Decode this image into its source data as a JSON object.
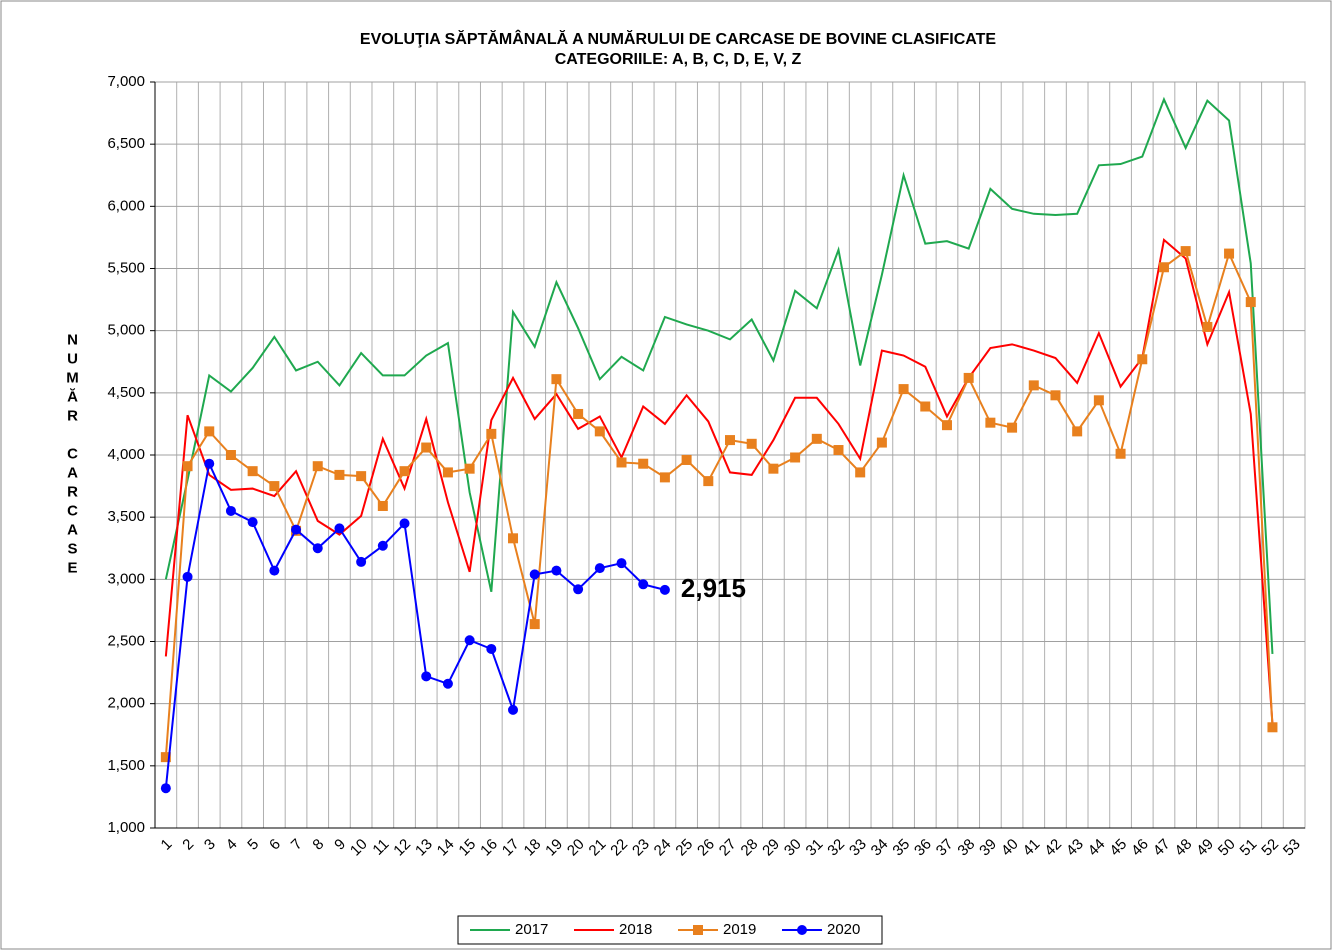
{
  "chart_data": {
    "type": "line",
    "title": "EVOLUŢIA SĂPTĂMÂNALĂ A NUMĂRULUI DE CARCASE DE BOVINE  CLASIFICATE",
    "subtitle": "CATEGORIILE: A, B, C, D, E, V, Z",
    "y_label": "NUMĂR CARCASE",
    "categories": [
      "1",
      "2",
      "3",
      "4",
      "5",
      "6",
      "7",
      "8",
      "9",
      "10",
      "11",
      "12",
      "13",
      "14",
      "15",
      "16",
      "17",
      "18",
      "19",
      "20",
      "21",
      "22",
      "23",
      "24",
      "25",
      "26",
      "27",
      "28",
      "29",
      "30",
      "31",
      "32",
      "33",
      "34",
      "35",
      "36",
      "37",
      "38",
      "39",
      "40",
      "41",
      "42",
      "43",
      "44",
      "45",
      "46",
      "47",
      "48",
      "49",
      "50",
      "51",
      "52",
      "53"
    ],
    "series": [
      {
        "name": "2017",
        "color": "#1fa84f",
        "marker": "none",
        "values": [
          3000,
          3800,
          4640,
          4510,
          4700,
          4950,
          4680,
          4750,
          4560,
          4820,
          4640,
          4640,
          4800,
          4900,
          3700,
          2900,
          5150,
          4870,
          5390,
          5020,
          4610,
          4790,
          4680,
          5110,
          5050,
          5000,
          4930,
          5090,
          4760,
          5320,
          5180,
          5650,
          4720,
          5450,
          6250,
          5700,
          5720,
          5660,
          6140,
          5980,
          5940,
          5930,
          5940,
          6330,
          6340,
          6400,
          6860,
          6470,
          6850,
          6690,
          5540,
          2400,
          null
        ]
      },
      {
        "name": "2018",
        "color": "#ff0000",
        "marker": "none",
        "values": [
          2380,
          4320,
          3840,
          3720,
          3730,
          3670,
          3870,
          3470,
          3360,
          3510,
          4130,
          3730,
          4290,
          3620,
          3060,
          4280,
          4620,
          4290,
          4490,
          4210,
          4310,
          3980,
          4390,
          4250,
          4480,
          4270,
          3860,
          3840,
          4120,
          4460,
          4460,
          4250,
          3970,
          4840,
          4800,
          4710,
          4310,
          4620,
          4860,
          4890,
          4840,
          4780,
          4580,
          4980,
          4550,
          4780,
          5730,
          5580,
          4890,
          5310,
          4330,
          1840,
          null
        ]
      },
      {
        "name": "2019",
        "color": "#e8801e",
        "marker": "square",
        "values": [
          1570,
          3910,
          4190,
          4000,
          3870,
          3750,
          3390,
          3910,
          3840,
          3830,
          3590,
          3870,
          4060,
          3860,
          3890,
          4170,
          3330,
          2640,
          4610,
          4330,
          4190,
          3940,
          3930,
          3820,
          3960,
          3790,
          4120,
          4090,
          3890,
          3980,
          4130,
          4040,
          3860,
          4100,
          4530,
          4390,
          4240,
          4620,
          4260,
          4220,
          4560,
          4480,
          4190,
          4440,
          4010,
          4770,
          5510,
          5640,
          5030,
          5620,
          5230,
          1810,
          null
        ]
      },
      {
        "name": "2020",
        "color": "#0000ff",
        "marker": "circle",
        "values": [
          1320,
          3020,
          3930,
          3550,
          3460,
          3070,
          3400,
          3250,
          3410,
          3140,
          3270,
          3450,
          2220,
          2160,
          2510,
          2440,
          1950,
          3040,
          3070,
          2920,
          3090,
          3130,
          2960,
          2915,
          null,
          null,
          null,
          null,
          null,
          null,
          null,
          null,
          null,
          null,
          null,
          null,
          null,
          null,
          null,
          null,
          null,
          null,
          null,
          null,
          null,
          null,
          null,
          null,
          null,
          null,
          null,
          null,
          null
        ],
        "value_labels": [
          null,
          null,
          null,
          null,
          null,
          null,
          null,
          null,
          null,
          null,
          null,
          null,
          null,
          null,
          null,
          null,
          null,
          null,
          null,
          null,
          null,
          null,
          null,
          "2,915",
          null,
          null,
          null,
          null,
          null,
          null,
          null,
          null,
          null,
          null,
          null,
          null,
          null,
          null,
          null,
          null,
          null,
          null,
          null,
          null,
          null,
          null,
          null,
          null,
          null,
          null,
          null,
          null,
          null
        ]
      }
    ],
    "ylim": [
      1000,
      7000
    ],
    "yticks": [
      {
        "value": 1000,
        "label": "1,000"
      },
      {
        "value": 1500,
        "label": "1,500"
      },
      {
        "value": 2000,
        "label": "2,000"
      },
      {
        "value": 2500,
        "label": "2,500"
      },
      {
        "value": 3000,
        "label": "3,000"
      },
      {
        "value": 3500,
        "label": "3,500"
      },
      {
        "value": 4000,
        "label": "4,000"
      },
      {
        "value": 4500,
        "label": "4,500"
      },
      {
        "value": 5000,
        "label": "5,000"
      },
      {
        "value": 5500,
        "label": "5,500"
      },
      {
        "value": 6000,
        "label": "6,000"
      },
      {
        "value": 6500,
        "label": "6,500"
      },
      {
        "value": 7000,
        "label": "7,000"
      }
    ],
    "grid": true,
    "legend": "bottom"
  }
}
